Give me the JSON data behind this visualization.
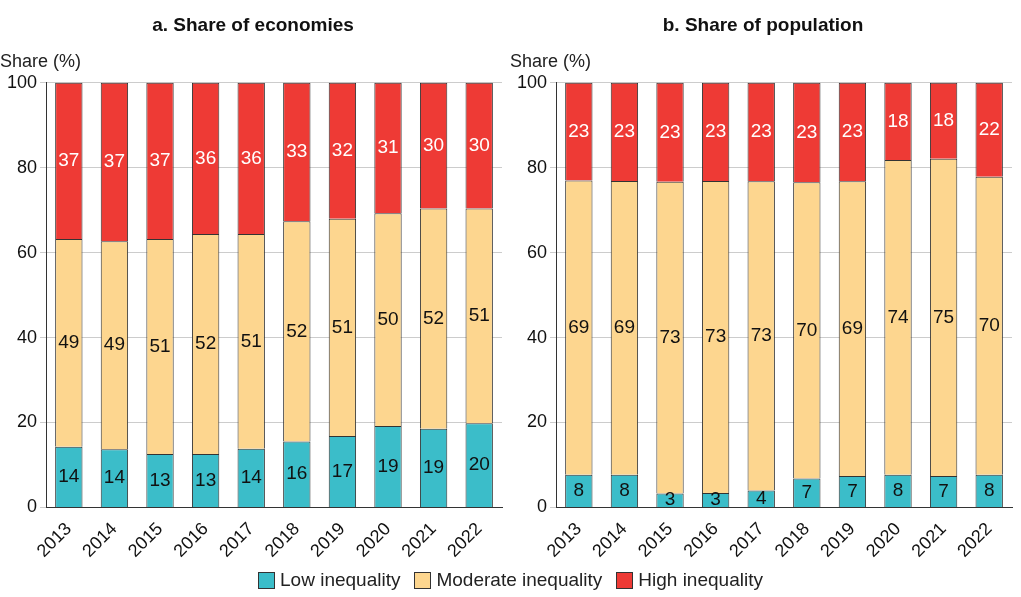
{
  "chart_data": [
    {
      "type": "bar",
      "title": "a. Share of economies",
      "ylabel": "Share (%)",
      "categories": [
        "2013",
        "2014",
        "2015",
        "2016",
        "2017",
        "2018",
        "2019",
        "2020",
        "2021",
        "2022"
      ],
      "stacked": true,
      "ylim": [
        0,
        100
      ],
      "yticks": [
        0,
        20,
        40,
        60,
        80,
        100
      ],
      "grid": "y",
      "legend": "bottom",
      "series": [
        {
          "name": "Low inequality",
          "color": "#3bbdc9",
          "values": [
            14.3,
            13.7,
            12.6,
            12.6,
            13.8,
            15.5,
            16.8,
            19.2,
            18.5,
            19.8
          ],
          "value_labels": [
            "14",
            "14",
            "13",
            "13",
            "14",
            "16",
            "17",
            "19",
            "19",
            "20"
          ]
        },
        {
          "name": "Moderate inequality",
          "color": "#fdd68f",
          "values": [
            48.9,
            49.0,
            50.6,
            51.8,
            50.6,
            51.9,
            51.2,
            50.1,
            51.9,
            50.6
          ],
          "value_labels": [
            "49",
            "49",
            "51",
            "52",
            "51",
            "52",
            "51",
            "50",
            "52",
            "51"
          ]
        },
        {
          "name": "High inequality",
          "color": "#ee3a35",
          "values": [
            36.8,
            37.3,
            36.8,
            35.6,
            35.6,
            32.6,
            32.0,
            30.7,
            29.6,
            29.6
          ],
          "value_labels": [
            "37",
            "37",
            "37",
            "36",
            "36",
            "33",
            "32",
            "31",
            "30",
            "30"
          ]
        }
      ]
    },
    {
      "type": "bar",
      "title": "b. Share of population",
      "ylabel": "Share (%)",
      "categories": [
        "2013",
        "2014",
        "2015",
        "2016",
        "2017",
        "2018",
        "2019",
        "2020",
        "2021",
        "2022"
      ],
      "stacked": true,
      "ylim": [
        0,
        100
      ],
      "yticks": [
        0,
        20,
        40,
        60,
        80,
        100
      ],
      "grid": "y",
      "series": [
        {
          "color": "#3bbdc9",
          "values": [
            7.7,
            7.7,
            3.3,
            3.4,
            4.0,
            6.8,
            7.4,
            7.7,
            7.4,
            7.7
          ],
          "value_labels": [
            "8",
            "8",
            "3",
            "3",
            "4",
            "7",
            "7",
            "8",
            "7",
            "8"
          ]
        },
        {
          "color": "#fdd68f",
          "values": [
            69.3,
            69.2,
            73.4,
            73.5,
            72.8,
            69.8,
            69.4,
            74.1,
            74.7,
            70.2
          ],
          "value_labels": [
            "69",
            "69",
            "73",
            "73",
            "73",
            "70",
            "69",
            "74",
            "75",
            "70"
          ]
        },
        {
          "color": "#ee3a35",
          "values": [
            23.0,
            23.1,
            23.3,
            23.1,
            23.2,
            23.4,
            23.2,
            18.2,
            17.9,
            22.1
          ],
          "value_labels": [
            "23",
            "23",
            "23",
            "23",
            "23",
            "23",
            "23",
            "18",
            "18",
            "22"
          ]
        }
      ]
    }
  ]
}
